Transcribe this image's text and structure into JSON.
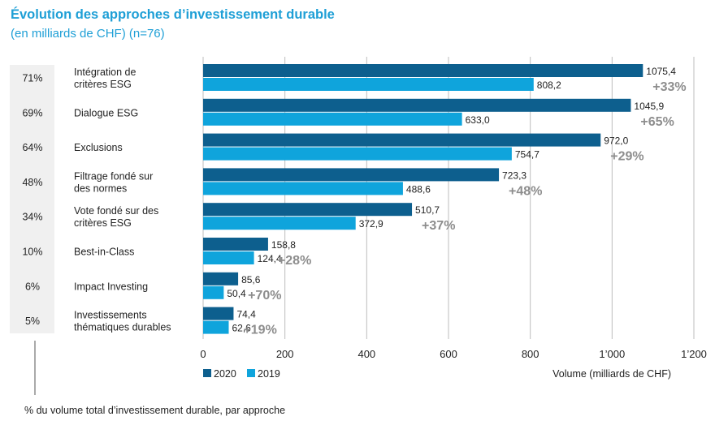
{
  "title": "Évolution des approches d’investissement durable",
  "subtitle": "(en milliards de CHF) (n=76)",
  "footnote": "% du volume total d’investissement durable, par approche",
  "colors": {
    "series2020": "#0d5f8e",
    "series2019": "#0fa4dc",
    "growth": "#8d8d8d",
    "grid": "#bdbdbd",
    "share_bg": "#f0f0f0"
  },
  "chart_data": {
    "type": "bar",
    "orientation": "horizontal",
    "categories": [
      [
        "Intégration de",
        "critères ESG"
      ],
      [
        "Dialogue ESG"
      ],
      [
        "Exclusions"
      ],
      [
        "Filtrage fondé sur",
        "des normes"
      ],
      [
        "Vote fondé sur des",
        "critères ESG"
      ],
      [
        "Best-in-Class"
      ],
      [
        "Impact Investing"
      ],
      [
        "Investissements",
        "thématiques durables"
      ]
    ],
    "shares": [
      "71%",
      "69%",
      "64%",
      "48%",
      "34%",
      "10%",
      "6%",
      "5%"
    ],
    "series": [
      {
        "name": "2020",
        "values": [
          1075.4,
          1045.9,
          972.0,
          723.3,
          510.7,
          158.8,
          85.6,
          74.4
        ],
        "labels": [
          "1075,4",
          "1045,9",
          "972,0",
          "723,3",
          "510,7",
          "158,8",
          "85,6",
          "74,4"
        ]
      },
      {
        "name": "2019",
        "values": [
          808.2,
          633.0,
          754.7,
          488.6,
          372.9,
          124.4,
          50.4,
          62.6
        ],
        "labels": [
          "808,2",
          "633,0",
          "754,7",
          "488,6",
          "372,9",
          "124,4",
          "50,4",
          "62,6"
        ]
      }
    ],
    "growth": [
      "+33%",
      "+65%",
      "+29%",
      "+48%",
      "+37%",
      "+28%",
      "+70%",
      "+19%"
    ],
    "xlim": [
      0,
      1200
    ],
    "xticks": [
      0,
      200,
      400,
      600,
      800,
      1000,
      1200
    ],
    "xtick_labels": [
      "0",
      "200",
      "400",
      "600",
      "800",
      "1’000",
      "1’200"
    ],
    "xlabel": "Volume (milliards de CHF)",
    "grid": true,
    "legend": "bottom-left"
  }
}
